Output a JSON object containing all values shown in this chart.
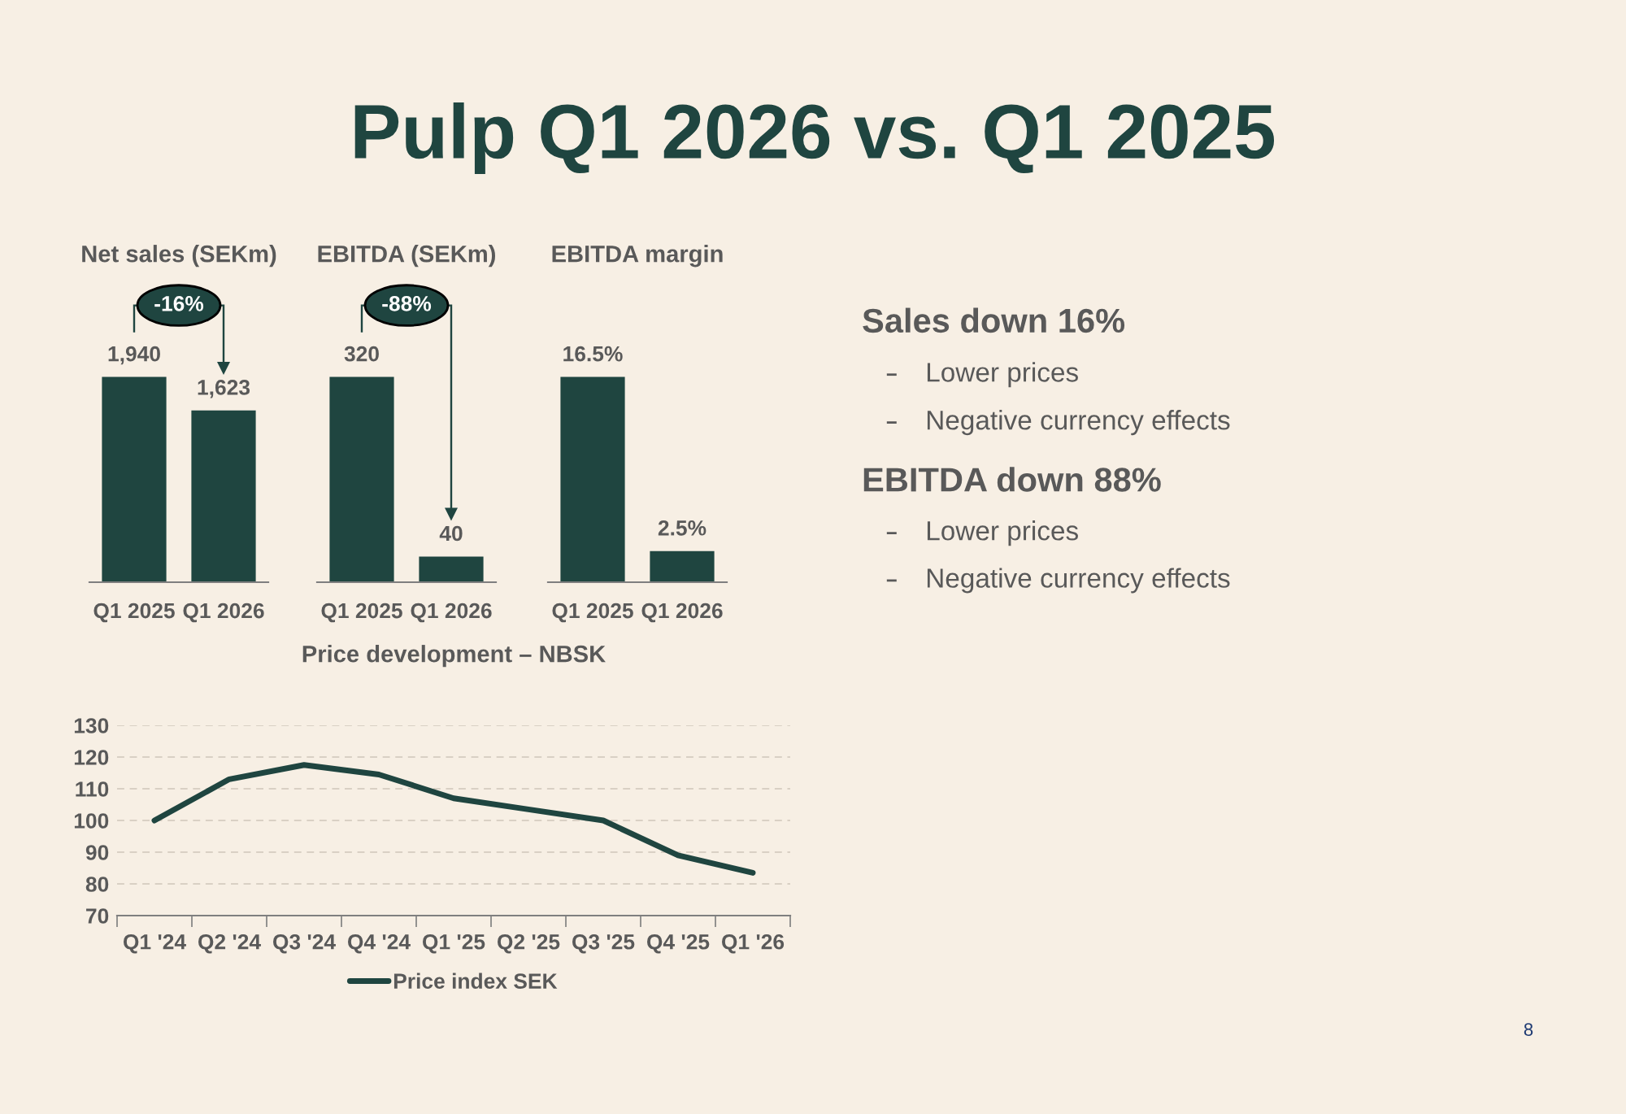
{
  "chart_data": [
    {
      "type": "other",
      "title": "Pulp Q1 2026 vs. Q1 2025",
      "annotations": [
        "8"
      ]
    },
    {
      "type": "bar",
      "title": "Net sales (SEKm)",
      "categories": [
        "Q1 2025",
        "Q1 2026"
      ],
      "values": [
        1940,
        1623
      ],
      "value_labels": [
        "1,940",
        "1,623"
      ],
      "color": "#1f4540",
      "annotations": [
        "-16%"
      ]
    },
    {
      "type": "bar",
      "title": "EBITDA (SEKm)",
      "categories": [
        "Q1 2025",
        "Q1 2026"
      ],
      "values": [
        320,
        40
      ],
      "data_labels": true,
      "color": "#1f4540",
      "annotations": [
        "-88%"
      ]
    },
    {
      "type": "bar",
      "title": "EBITDA margin",
      "categories": [
        "Q1 2025",
        "Q1 2026"
      ],
      "values": [
        16.5,
        2.5
      ],
      "value_labels": [
        "16.5%",
        "2.5%"
      ],
      "color": "#1f4540"
    },
    {
      "type": "line",
      "title": "Price development – NBSK",
      "categories": [
        "Q1 '24",
        "Q2 '24",
        "Q3 '24",
        "Q4 '24",
        "Q1 '25",
        "Q2 '25",
        "Q3 '25",
        "Q4 '25",
        "Q1 '26"
      ],
      "series": [
        {
          "name": "Price index SEK",
          "color": "#1f4540",
          "values": [
            100,
            113,
            117.5,
            114.5,
            107,
            103.5,
            100,
            89,
            83.5
          ]
        }
      ],
      "ylim": [
        70,
        130
      ],
      "yticks": [
        70,
        80,
        90,
        100,
        110,
        120,
        130
      ],
      "grid": "y",
      "legend": "bottom"
    },
    {
      "type": "other",
      "title": "Sales down 16%",
      "annotations": [
        "Lower prices",
        "Negative currency effects"
      ]
    },
    {
      "type": "other",
      "title": "EBITDA down 88%",
      "annotations": [
        "Lower prices",
        "Negative currency effects"
      ]
    }
  ]
}
